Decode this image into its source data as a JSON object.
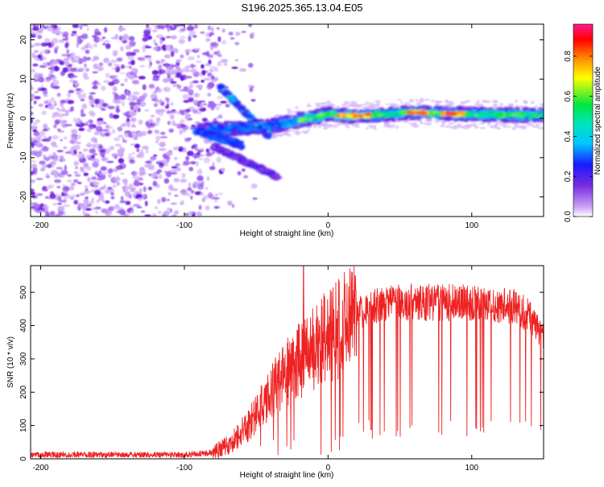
{
  "title": "S196.2025.365.13.04.E05",
  "colors": {
    "background": "#ffffff",
    "axis": "#000000",
    "snr_line": "#ee2222",
    "scatter_purple": "#7a2be0"
  },
  "chart_data": [
    {
      "type": "heatmap",
      "title": "S196.2025.365.13.04.E05",
      "xlabel": "Height of straight line (km)",
      "ylabel": "Frequency (Hz)",
      "xlim": [
        -207,
        150
      ],
      "ylim": [
        -25,
        24
      ],
      "xticks": [
        -200,
        -100,
        0,
        100
      ],
      "yticks": [
        -20,
        -10,
        0,
        10,
        20
      ],
      "colorbar": {
        "label": "Normalized spectral amplitude",
        "range": [
          0.0,
          0.96
        ],
        "ticks": [
          0.0,
          0.2,
          0.4,
          0.6,
          0.8
        ],
        "colormap": [
          "#ffffff",
          "#c9a3f5",
          "#7a2be0",
          "#1a1aff",
          "#00c8ff",
          "#00e640",
          "#ffff00",
          "#ff8c00",
          "#ff0000",
          "#ff1a8c"
        ]
      },
      "features": {
        "noise_region_x": [
          -207,
          -75
        ],
        "main_trace": {
          "x": [
            -90,
            -40,
            -20,
            0,
            20,
            60,
            100,
            150
          ],
          "y": [
            -3,
            -2,
            -0.5,
            1,
            0.6,
            1.5,
            1,
            0.8
          ],
          "peak_amplitude": 0.9
        },
        "upper_branch": {
          "x": [
            -75,
            -40
          ],
          "y": [
            8,
            -5
          ]
        },
        "lower_branch": {
          "x": [
            -80,
            -35
          ],
          "y": [
            -7,
            -15
          ]
        }
      }
    },
    {
      "type": "line",
      "xlabel": "Height of straight line (km)",
      "ylabel": "SNR (10 * v/v)",
      "xlim": [
        -207,
        150
      ],
      "ylim": [
        0,
        580
      ],
      "xticks": [
        -200,
        -100,
        0,
        100
      ],
      "yticks": [
        0,
        100,
        200,
        300,
        400,
        500
      ],
      "series": [
        {
          "name": "SNR",
          "x": [
            -207,
            -150,
            -100,
            -80,
            -70,
            -60,
            -50,
            -40,
            -30,
            -20,
            -10,
            0,
            10,
            20,
            30,
            40,
            50,
            60,
            70,
            80,
            90,
            100,
            110,
            120,
            130,
            140,
            150
          ],
          "values": [
            12,
            12,
            12,
            20,
            40,
            80,
            130,
            200,
            255,
            295,
            330,
            370,
            400,
            430,
            455,
            465,
            470,
            470,
            470,
            470,
            470,
            470,
            465,
            460,
            455,
            430,
            360
          ],
          "spike": {
            "x": -17,
            "value": 580
          }
        }
      ]
    }
  ]
}
